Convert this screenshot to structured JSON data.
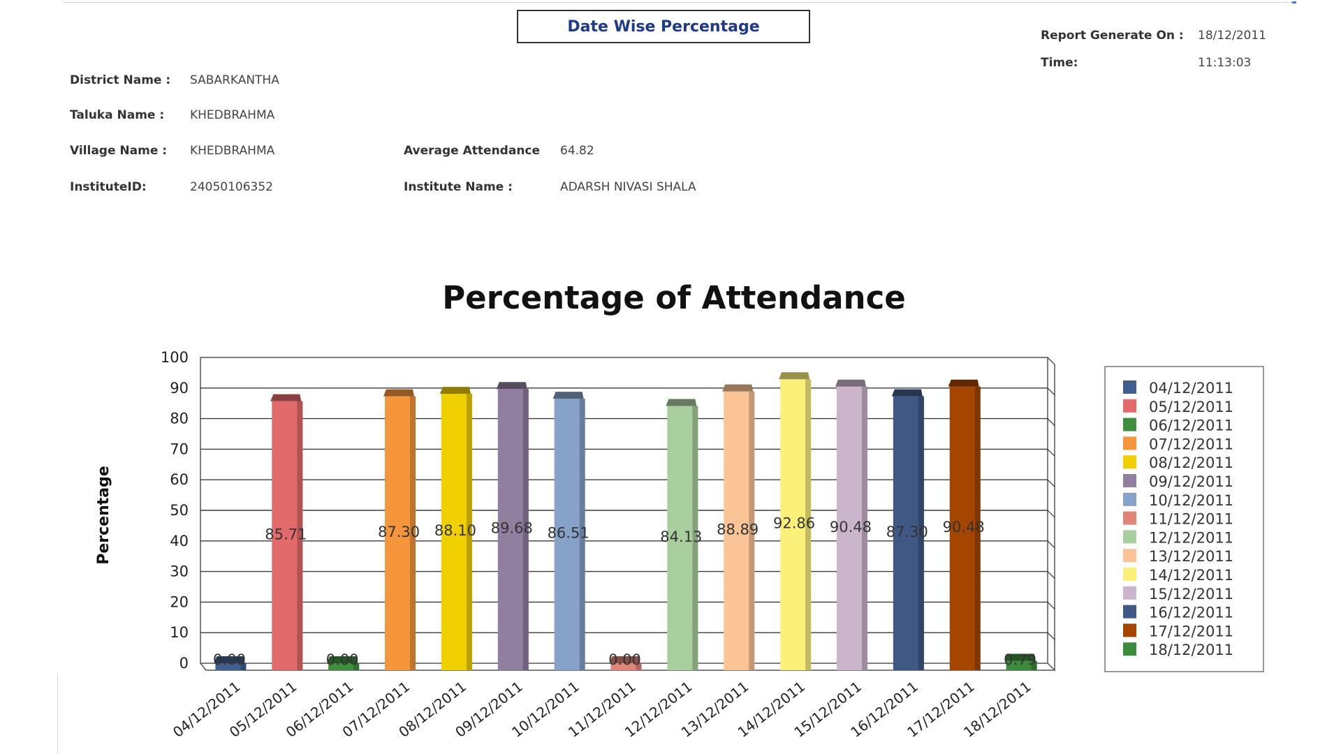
{
  "report": {
    "title": "Date Wise Percentage",
    "generated_label": "Report Generate On :",
    "generated_value": "18/12/2011",
    "time_label": "Time:",
    "time_value": "11:13:03"
  },
  "info": {
    "district_label": "District Name :",
    "district_value": "SABARKANTHA",
    "taluka_label": "Taluka Name :",
    "taluka_value": "KHEDBRAHMA",
    "village_label": "Village Name :",
    "village_value": "KHEDBRAHMA",
    "institute_id_label": "InstituteID:",
    "institute_id_value": "24050106352",
    "avg_label": "Average Attendance",
    "avg_value": "64.82",
    "institute_name_label": "Institute Name :",
    "institute_name_value": "ADARSH NIVASI SHALA"
  },
  "chart_data": {
    "type": "bar",
    "title": "Percentage of Attendance",
    "xlabel": "",
    "ylabel": "Percentage",
    "ylim": [
      0,
      100
    ],
    "yticks": [
      0,
      10,
      20,
      30,
      40,
      50,
      60,
      70,
      80,
      90,
      100
    ],
    "grid": true,
    "legend": "right",
    "categories": [
      "04/12/2011",
      "05/12/2011",
      "06/12/2011",
      "07/12/2011",
      "08/12/2011",
      "09/12/2011",
      "10/12/2011",
      "11/12/2011",
      "12/12/2011",
      "13/12/2011",
      "14/12/2011",
      "15/12/2011",
      "16/12/2011",
      "17/12/2011",
      "18/12/2011"
    ],
    "values": [
      0.0,
      85.71,
      0.0,
      87.3,
      88.1,
      89.68,
      86.51,
      0.0,
      84.13,
      88.89,
      92.86,
      90.48,
      87.3,
      90.48,
      0.79
    ],
    "value_labels": [
      "0.00",
      "85.71",
      "0.00",
      "87.30",
      "88.10",
      "89.68",
      "86.51",
      "0.00",
      "84.13",
      "88.89",
      "92.86",
      "90.48",
      "87.30",
      "90.48",
      "0.79"
    ],
    "colors": [
      "#3f5f8f",
      "#e26a6a",
      "#3f8f3f",
      "#f5963c",
      "#f0d000",
      "#917fa0",
      "#87a2c8",
      "#e0857a",
      "#a9cf9f",
      "#fbc497",
      "#faf07a",
      "#cbb5cb",
      "#405884",
      "#a44500",
      "#3c8a3c"
    ]
  }
}
